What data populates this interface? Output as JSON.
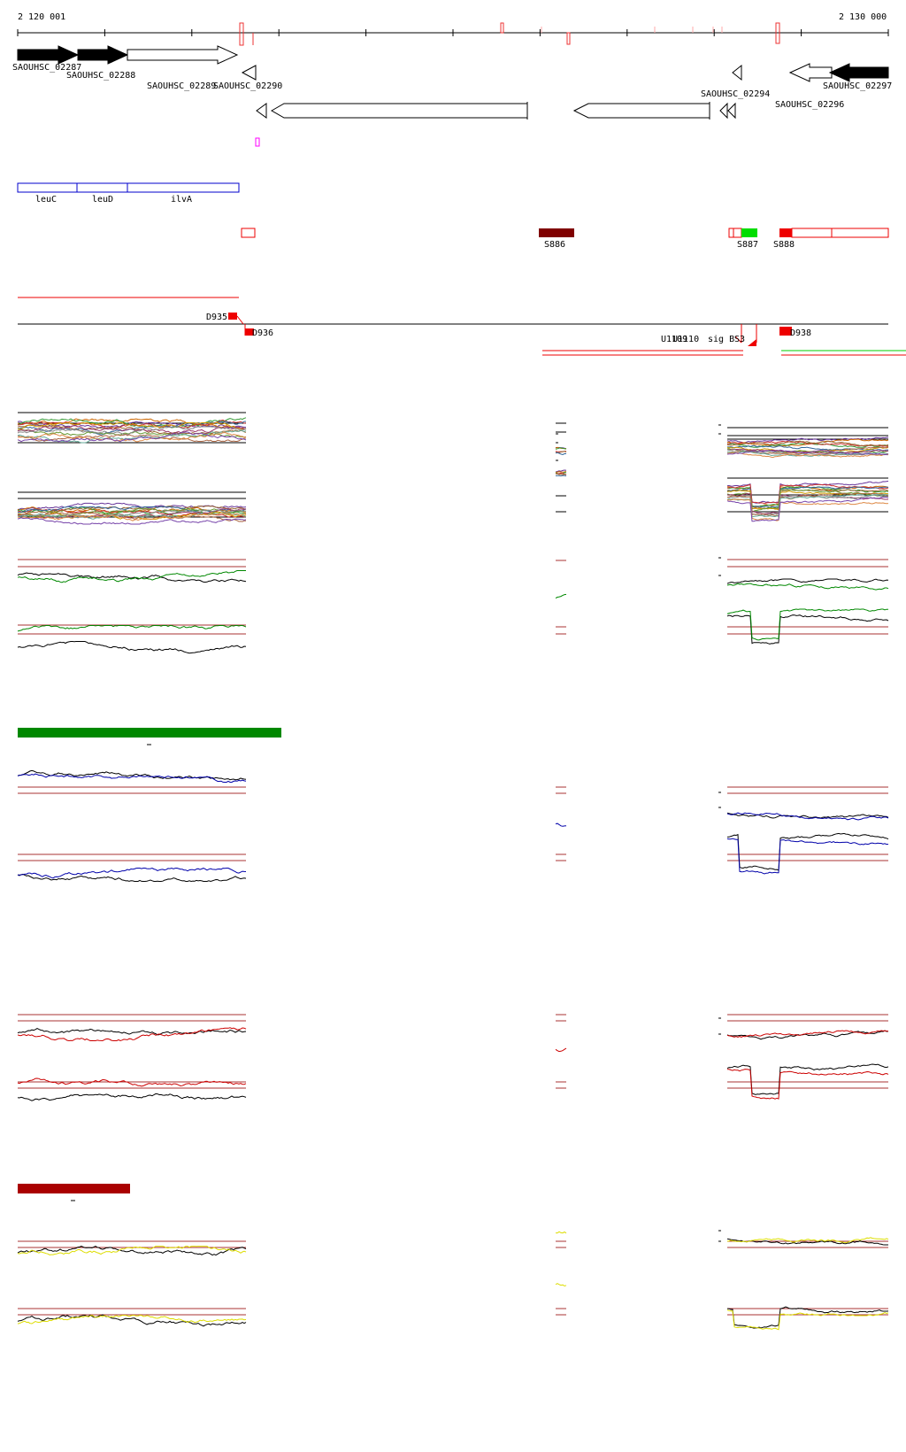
{
  "coordinates": {
    "start": "2 120 001",
    "end": "2 130 000"
  },
  "genes_forward": [
    {
      "label": "SAOUHSC_02287",
      "fill": "#000000"
    },
    {
      "label": "SAOUHSC_02288",
      "fill": "#000000"
    },
    {
      "label": "SAOUHSC_02289",
      "fill": "#ffffff"
    }
  ],
  "genes_reverse": [
    {
      "label": "SAOUHSC_02290"
    },
    {
      "label": "SAOUHSC_02294"
    },
    {
      "label": "SAOUHSC_02296"
    },
    {
      "label": "SAOUHSC_02297"
    }
  ],
  "operon_genes": [
    "leuC",
    "leuD",
    "ilvA"
  ],
  "segments": [
    {
      "label": "S886",
      "color": "#800000"
    },
    {
      "label": "S887",
      "color": "#00dd00"
    },
    {
      "label": "S888",
      "color": "#ee0000"
    }
  ],
  "features": {
    "downstream": [
      "D935",
      "D936",
      "D938"
    ],
    "upstream": [
      "U1109",
      "U1110",
      "sig B",
      "S3"
    ]
  },
  "colors": {
    "gene_black": "#000000",
    "operon_blue": "#0000cc",
    "feature_red": "#ee0000",
    "condition_green": "#008800",
    "condition_blue": "#0000aa",
    "condition_red": "#cc0000",
    "condition_yellow": "#dddd00",
    "threshold_brown": "#aa3333"
  }
}
